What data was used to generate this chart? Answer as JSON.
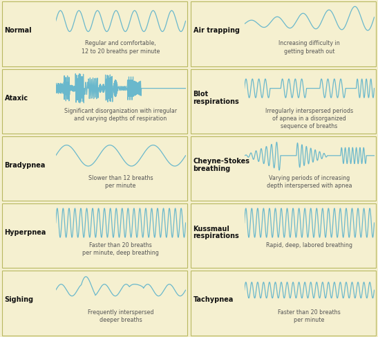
{
  "background_color": "#f5f0d0",
  "cell_bg": "#f5f0d0",
  "border_color": "#b8b860",
  "wave_color": "#6ab8cc",
  "title_color": "#111111",
  "desc_color": "#555555",
  "grid_rows": 5,
  "grid_cols": 2,
  "figsize": [
    5.47,
    4.87
  ],
  "dpi": 100,
  "cells": [
    {
      "title": "Normal",
      "desc": "Regular and comfortable,\n12 to 20 breaths per minute",
      "wave_type": "normal"
    },
    {
      "title": "Air trapping",
      "desc": "Increasing difficulty in\ngetting breath out",
      "wave_type": "air_trapping"
    },
    {
      "title": "Ataxic",
      "desc": "Significant disorganization with irregular\nand varying depths of respiration",
      "wave_type": "ataxic"
    },
    {
      "title": "Blot\nrespirations",
      "desc": "Irregularly interspersed periods\nof apnea in a disorganized\nsequence of breaths",
      "wave_type": "blot"
    },
    {
      "title": "Bradypnea",
      "desc": "Slower than 12 breaths\nper minute",
      "wave_type": "bradypnea"
    },
    {
      "title": "Cheyne-Stokes\nbreathing",
      "desc": "Varying periods of increasing\ndepth interspersed with apnea",
      "wave_type": "cheyne_stokes"
    },
    {
      "title": "Hyperpnea",
      "desc": "Faster than 20 breaths\nper minute, deep breathing",
      "wave_type": "hyperpnea"
    },
    {
      "title": "Kussmaul\nrespirations",
      "desc": "Rapid, deep, labored breathing",
      "wave_type": "kussmaul"
    },
    {
      "title": "Sighing",
      "desc": "Frequently interspersed\ndeeper breaths",
      "wave_type": "sighing"
    },
    {
      "title": "Tachypnea",
      "desc": "Faster than 20 breaths\nper minute",
      "wave_type": "tachypnea"
    }
  ]
}
